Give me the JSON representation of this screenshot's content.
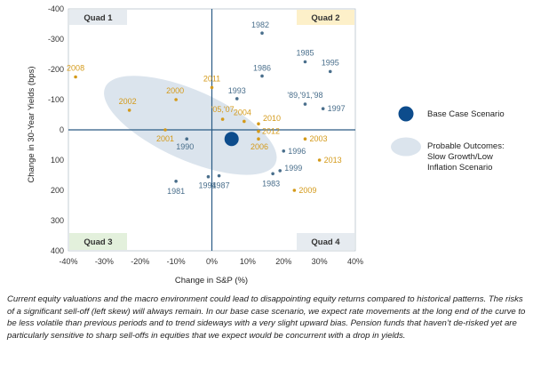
{
  "chart_data": {
    "type": "scatter",
    "title": "",
    "xlabel": "Change in S&P (%)",
    "ylabel": "Change in 30-Year Yields (bps)",
    "xlim": [
      -40,
      40
    ],
    "ylim": [
      -400,
      400
    ],
    "y_inverted": true,
    "x_ticks": [
      "-40%",
      "-30%",
      "-20%",
      "-10%",
      "0%",
      "10%",
      "20%",
      "30%",
      "40%"
    ],
    "y_ticks": [
      "-400",
      "-300",
      "-200",
      "-100",
      "0",
      "100",
      "200",
      "300",
      "400"
    ],
    "colors": {
      "blue_series": "#4a6f8c",
      "orange_series": "#d49a1a",
      "base_case": "#0d4c8c",
      "probable_outcomes": "#dbe4ed",
      "axis": "#2a5b85",
      "quad_fill": "#e6ebf0",
      "quad2_fill": "#fdf0c9",
      "quad3_fill": "#e3f0dc"
    },
    "series": [
      {
        "name": "blue",
        "points": [
          {
            "label": "1982",
            "x": 14,
            "y": -320
          },
          {
            "label": "1985",
            "x": 26,
            "y": -225
          },
          {
            "label": "1995",
            "x": 33,
            "y": -193
          },
          {
            "label": "1986",
            "x": 14,
            "y": -178
          },
          {
            "label": "1993",
            "x": 7,
            "y": -103
          },
          {
            "label": "'89,'91,'98",
            "x": 26,
            "y": -85
          },
          {
            "label": "1997",
            "x": 31,
            "y": -70
          },
          {
            "label": "1990",
            "x": -7,
            "y": 30
          },
          {
            "label": "1996",
            "x": 20,
            "y": 70
          },
          {
            "label": "1999",
            "x": 19,
            "y": 135
          },
          {
            "label": "1983",
            "x": 17,
            "y": 145
          },
          {
            "label": "1981",
            "x": -10,
            "y": 170
          },
          {
            "label": "1994",
            "x": -1,
            "y": 155
          },
          {
            "label": "1987",
            "x": 2,
            "y": 152
          }
        ]
      },
      {
        "name": "orange",
        "points": [
          {
            "label": "2008",
            "x": -38,
            "y": -175
          },
          {
            "label": "2011",
            "x": 0,
            "y": -140
          },
          {
            "label": "2002",
            "x": -23,
            "y": -65
          },
          {
            "label": "2000",
            "x": -10,
            "y": -100
          },
          {
            "label": "'05,'07",
            "x": 3,
            "y": -35
          },
          {
            "label": "2010",
            "x": 13,
            "y": -20
          },
          {
            "label": "2004",
            "x": 9,
            "y": -28
          },
          {
            "label": "2012",
            "x": 13,
            "y": 5
          },
          {
            "label": "2001",
            "x": -13,
            "y": 0
          },
          {
            "label": "2006",
            "x": 13,
            "y": 30
          },
          {
            "label": "2003",
            "x": 26,
            "y": 30
          },
          {
            "label": "2013",
            "x": 30,
            "y": 100
          },
          {
            "label": "2009",
            "x": 23,
            "y": 200
          }
        ]
      }
    ],
    "base_case": {
      "x": 5.5,
      "y": 30
    },
    "probable_outcomes": {
      "cx": -6,
      "cy": -15,
      "rx": 26,
      "ry": 115,
      "rotation_deg": 24
    },
    "quadrants": [
      {
        "label": "Quad 1",
        "corner": "top-left"
      },
      {
        "label": "Quad 2",
        "corner": "top-right"
      },
      {
        "label": "Quad 3",
        "corner": "bottom-left"
      },
      {
        "label": "Quad 4",
        "corner": "bottom-right"
      }
    ],
    "legend": [
      {
        "label": "Base Case Scenario"
      },
      {
        "label": "Probable Outcomes: Slow Growth/Low Inflation Scenario",
        "lines": [
          "Probable Outcomes:",
          "Slow Growth/Low",
          "Inflation Scenario"
        ]
      }
    ]
  },
  "caption": "Current equity valuations and the macro environment could lead to disappointing equity returns compared to historical patterns. The risks of a significant sell-off (left skew) will always remain. In our base case scenario, we expect rate movements at the long end of the curve to be less volatile than previous periods and to trend sideways with a very slight upward bias. Pension funds that haven’t de-risked yet are particularly sensitive to sharp sell-offs in equities that we expect would be concurrent with a drop in yields."
}
